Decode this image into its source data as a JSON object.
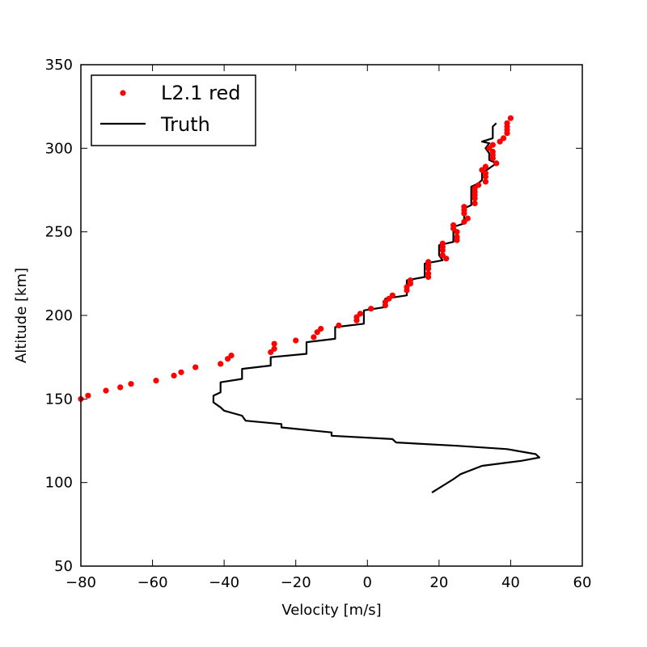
{
  "chart_data": {
    "type": "scatter",
    "xlabel": "Velocity [m/s]",
    "ylabel": "Altitude [km]",
    "xlim": [
      -80,
      60
    ],
    "ylim": [
      50,
      350
    ],
    "xticks": [
      -80,
      -60,
      -40,
      -20,
      0,
      20,
      40,
      60
    ],
    "yticks": [
      50,
      100,
      150,
      200,
      250,
      300,
      350
    ],
    "x_tick_labels": [
      "−80",
      "−60",
      "−40",
      "−20",
      "0",
      "20",
      "40",
      "60"
    ],
    "y_tick_labels": [
      "50",
      "100",
      "150",
      "200",
      "250",
      "300",
      "350"
    ],
    "grid": false,
    "legend_position": "top-left",
    "series": [
      {
        "name": "L2.1 red",
        "kind": "scatter",
        "color": "#ff0000",
        "points": [
          [
            -80,
            150
          ],
          [
            -78,
            152
          ],
          [
            -73,
            155
          ],
          [
            -69,
            157
          ],
          [
            -66,
            159
          ],
          [
            -59,
            161
          ],
          [
            -54,
            164
          ],
          [
            -52,
            166
          ],
          [
            -48,
            169
          ],
          [
            -41,
            171
          ],
          [
            -39,
            174
          ],
          [
            -38,
            176
          ],
          [
            -27,
            178
          ],
          [
            -26,
            180
          ],
          [
            -26,
            183
          ],
          [
            -20,
            185
          ],
          [
            -15,
            187
          ],
          [
            -14,
            190
          ],
          [
            -13,
            192
          ],
          [
            -8,
            194
          ],
          [
            -3,
            197
          ],
          [
            -3,
            199
          ],
          [
            -2,
            201
          ],
          [
            1,
            204
          ],
          [
            5,
            206
          ],
          [
            5,
            208
          ],
          [
            6,
            210
          ],
          [
            7,
            212
          ],
          [
            11,
            215
          ],
          [
            11,
            217
          ],
          [
            12,
            219
          ],
          [
            12,
            221
          ],
          [
            17,
            223
          ],
          [
            17,
            225
          ],
          [
            17,
            228
          ],
          [
            17,
            230
          ],
          [
            17,
            232
          ],
          [
            22,
            234
          ],
          [
            21,
            236
          ],
          [
            21,
            239
          ],
          [
            21,
            241
          ],
          [
            21,
            243
          ],
          [
            25,
            245
          ],
          [
            25,
            247
          ],
          [
            25,
            250
          ],
          [
            24,
            252
          ],
          [
            24,
            254
          ],
          [
            27,
            256
          ],
          [
            28,
            258
          ],
          [
            27,
            261
          ],
          [
            27,
            263
          ],
          [
            27,
            265
          ],
          [
            30,
            267
          ],
          [
            30,
            270
          ],
          [
            30,
            272
          ],
          [
            30,
            274
          ],
          [
            30,
            276
          ],
          [
            31,
            278
          ],
          [
            33,
            280
          ],
          [
            33,
            283
          ],
          [
            33,
            285
          ],
          [
            32,
            287
          ],
          [
            33,
            289
          ],
          [
            36,
            291
          ],
          [
            35,
            294
          ],
          [
            35,
            296
          ],
          [
            35,
            298
          ],
          [
            34,
            300
          ],
          [
            35,
            302
          ],
          [
            37,
            304
          ],
          [
            38,
            306
          ],
          [
            39,
            309
          ],
          [
            39,
            311
          ],
          [
            39,
            313
          ],
          [
            39,
            315
          ],
          [
            40,
            318
          ]
        ]
      },
      {
        "name": "Truth",
        "kind": "line",
        "color": "#000000",
        "points": [
          [
            18,
            94
          ],
          [
            24,
            102
          ],
          [
            26,
            105
          ],
          [
            32,
            110
          ],
          [
            43,
            113
          ],
          [
            48,
            115
          ],
          [
            47,
            117
          ],
          [
            39,
            120
          ],
          [
            25,
            122
          ],
          [
            8,
            124
          ],
          [
            7,
            126
          ],
          [
            -10,
            128
          ],
          [
            -10,
            130
          ],
          [
            -24,
            133
          ],
          [
            -24,
            135
          ],
          [
            -34,
            137
          ],
          [
            -35,
            140
          ],
          [
            -40,
            143
          ],
          [
            -41,
            145
          ],
          [
            -43,
            148
          ],
          [
            -43,
            152
          ],
          [
            -41,
            154
          ],
          [
            -41,
            157
          ],
          [
            -41,
            160
          ],
          [
            -35,
            162
          ],
          [
            -35,
            165
          ],
          [
            -35,
            168
          ],
          [
            -27,
            170
          ],
          [
            -27,
            173
          ],
          [
            -27,
            175
          ],
          [
            -17,
            177
          ],
          [
            -17,
            181
          ],
          [
            -17,
            184
          ],
          [
            -9,
            186
          ],
          [
            -9,
            190
          ],
          [
            -9,
            193
          ],
          [
            -1,
            195
          ],
          [
            -1,
            200
          ],
          [
            -1,
            203
          ],
          [
            5,
            205
          ],
          [
            5,
            210
          ],
          [
            11,
            212
          ],
          [
            11,
            217
          ],
          [
            11,
            221
          ],
          [
            16,
            223
          ],
          [
            16,
            231
          ],
          [
            21,
            233
          ],
          [
            20,
            236
          ],
          [
            20,
            242
          ],
          [
            24,
            244
          ],
          [
            24,
            253
          ],
          [
            27,
            255
          ],
          [
            27,
            264
          ],
          [
            29,
            266
          ],
          [
            29,
            277
          ],
          [
            31,
            279
          ],
          [
            32,
            281
          ],
          [
            32,
            285
          ],
          [
            34,
            288
          ],
          [
            36,
            291
          ],
          [
            34,
            293
          ],
          [
            34,
            297
          ],
          [
            33,
            300
          ],
          [
            34,
            303
          ],
          [
            32,
            304
          ],
          [
            35,
            306
          ],
          [
            35,
            312
          ],
          [
            35,
            313
          ],
          [
            36,
            315
          ]
        ]
      }
    ]
  }
}
